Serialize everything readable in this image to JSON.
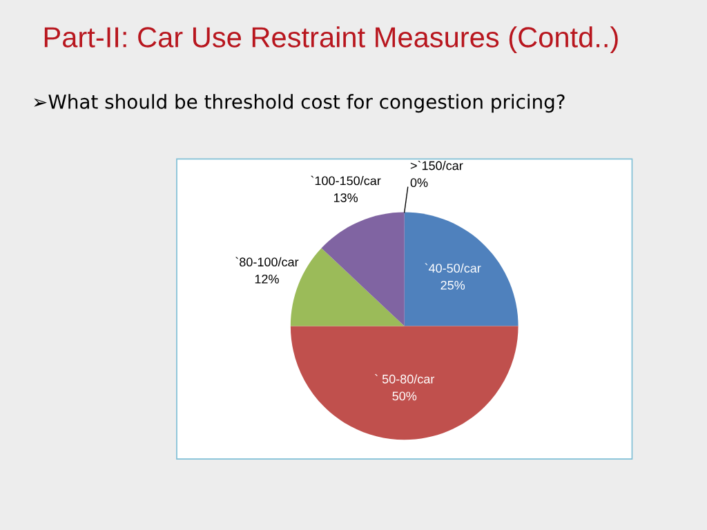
{
  "chart_data": {
    "type": "pie",
    "title": "Part-II: Car Use Restraint Measures (Contd..)",
    "subtitle": "➢What should be threshold cost for congestion pricing?",
    "categories": [
      "`40-50/car",
      "` 50-80/car",
      "`80-100/car",
      "`100-150/car",
      ">`150/car"
    ],
    "values": [
      25,
      50,
      12,
      13,
      0
    ],
    "value_labels": [
      "25%",
      "50%",
      "12%",
      "13%",
      "0%"
    ],
    "colors": [
      "#4f81bd",
      "#c0504d",
      "#9bbb59",
      "#8064a2",
      "#4bacc6"
    ]
  }
}
